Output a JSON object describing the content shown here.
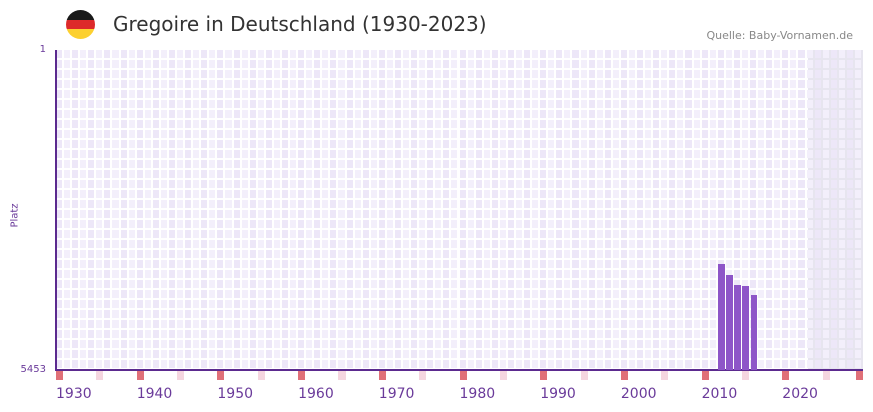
{
  "header": {
    "title": "Gregoire in Deutschland (1930-2023)",
    "source": "Quelle: Baby-Vornamen.de",
    "flag": {
      "colors": [
        "#1a1a1a",
        "#dd2a2a",
        "#fcd030"
      ]
    }
  },
  "chart_data": {
    "type": "bar",
    "title": "Gregoire in Deutschland (1930-2023)",
    "xlabel": "",
    "ylabel": "Platz",
    "y_tick_labels": [
      "1",
      "5453"
    ],
    "ylim": [
      5453,
      1
    ],
    "y_inverted": true,
    "x_tick_labels": [
      "1930",
      "1940",
      "1950",
      "1960",
      "1970",
      "1980",
      "1990",
      "2000",
      "2010",
      "2020"
    ],
    "xlim": [
      1930,
      2029
    ],
    "grid": true,
    "shaded_region": {
      "from": 2023,
      "to": 2029
    },
    "categories": [
      2012,
      2013,
      2014,
      2015,
      2016
    ],
    "values": [
      3650,
      3830,
      4005,
      4020,
      4175
    ],
    "colors": {
      "bar": "#8e55c8",
      "axis": "#5b2a8f",
      "decade_marker": "#e07078",
      "mid_marker": "#f5d6df"
    }
  },
  "axes": {
    "y_top": "1",
    "y_bottom": "5453",
    "y_title": "Platz",
    "x_labels": [
      "1930",
      "1940",
      "1950",
      "1960",
      "1970",
      "1980",
      "1990",
      "2000",
      "2010",
      "2020"
    ]
  }
}
